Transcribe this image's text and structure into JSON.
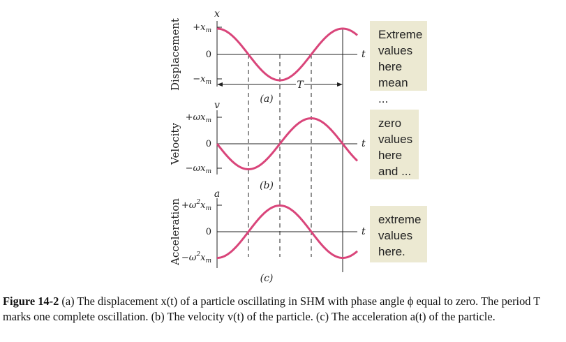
{
  "panels": [
    {
      "id": "a",
      "axis_label": "Displacement",
      "variable": "x",
      "time_label": "t",
      "tick_top": "+x",
      "tick_top_sub": "m",
      "tick_zero": "0",
      "tick_bottom": "−x",
      "tick_bottom_sub": "m",
      "panel_label": "(a)",
      "period_label": "T",
      "note_lines": [
        "Extreme",
        "values",
        "here",
        "mean ..."
      ]
    },
    {
      "id": "b",
      "axis_label": "Velocity",
      "variable": "v",
      "time_label": "t",
      "tick_top": "+ωx",
      "tick_top_sub": "m",
      "tick_zero": "0",
      "tick_bottom": "−ωx",
      "tick_bottom_sub": "m",
      "panel_label": "(b)",
      "note_lines": [
        "zero",
        "values",
        "here",
        "and ..."
      ]
    },
    {
      "id": "c",
      "axis_label": "Acceleration",
      "variable": "a",
      "time_label": "t",
      "tick_top": "+ω",
      "tick_top_sup": "2",
      "tick_top_x": "x",
      "tick_top_sub": "m",
      "tick_zero": "0",
      "tick_bottom": "−ω",
      "tick_bottom_sup": "2",
      "tick_bottom_x": "x",
      "tick_bottom_sub": "m",
      "panel_label": "(c)",
      "note_lines": [
        "extreme",
        "values",
        "here."
      ]
    }
  ],
  "caption": {
    "label": "Figure 14-2",
    "text": " (a) The displacement x(t) of a particle oscillating in SHM with phase angle ϕ equal to zero. The period T marks one complete oscillation. (b) The velocity v(t) of the particle. (c) The acceleration a(t) of the particle."
  },
  "colors": {
    "curve": "#d9457a",
    "axis": "#222222",
    "note_bg": "#ece9d2"
  }
}
